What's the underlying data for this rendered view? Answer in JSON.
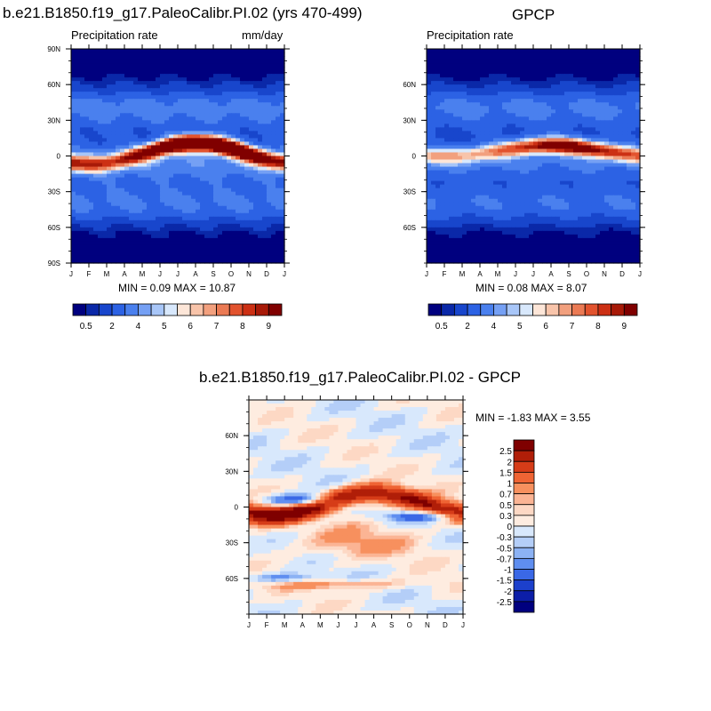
{
  "chart_data": [
    {
      "type": "heatmap",
      "title": "b.e21.B1850.f19_g17.PaleoCalibr.PI.02 (yrs 470-499)",
      "left_string": "Precipitation rate",
      "right_string": "mm/day",
      "x": "month",
      "y": "latitude",
      "xticks": [
        "J",
        "F",
        "M",
        "A",
        "M",
        "J",
        "J",
        "A",
        "S",
        "O",
        "N",
        "D",
        "J"
      ],
      "yticks": [
        {
          "lat": 90,
          "label": "90N"
        },
        {
          "lat": 60,
          "label": "60N"
        },
        {
          "lat": 30,
          "label": "30N"
        },
        {
          "lat": 0,
          "label": "0"
        },
        {
          "lat": -30,
          "label": "30S"
        },
        {
          "lat": -60,
          "label": "60S"
        },
        {
          "lat": -90,
          "label": "90S"
        }
      ],
      "ylim": [
        -90,
        90
      ],
      "stats": "MIN =   0.09 MAX =  10.87",
      "min": 0.09,
      "max": 10.87,
      "itcz_max_mm_day": 10.87,
      "colorbar_ticks": [
        "0.5",
        "2",
        "4",
        "5",
        "6",
        "7",
        "8",
        "9"
      ]
    },
    {
      "type": "heatmap",
      "title": "GPCP",
      "left_string": "Precipitation rate",
      "right_string": "",
      "x": "month",
      "y": "latitude",
      "xticks": [
        "J",
        "F",
        "M",
        "A",
        "M",
        "J",
        "J",
        "A",
        "S",
        "O",
        "N",
        "D",
        "J"
      ],
      "yticks": [
        {
          "lat": 60,
          "label": "60N"
        },
        {
          "lat": 30,
          "label": "30N"
        },
        {
          "lat": 0,
          "label": "0"
        },
        {
          "lat": -30,
          "label": "30S"
        },
        {
          "lat": -60,
          "label": "60S"
        }
      ],
      "ylim": [
        -90,
        90
      ],
      "stats": "MIN =   0.08 MAX =   8.07",
      "min": 0.08,
      "max": 8.07,
      "colorbar_ticks": [
        "0.5",
        "2",
        "4",
        "5",
        "6",
        "7",
        "8",
        "9"
      ]
    },
    {
      "type": "heatmap",
      "title": "b.e21.B1850.f19_g17.PaleoCalibr.PI.02 - GPCP",
      "x": "month",
      "y": "latitude",
      "xticks": [
        "J",
        "F",
        "M",
        "A",
        "M",
        "J",
        "J",
        "A",
        "S",
        "O",
        "N",
        "D",
        "J"
      ],
      "yticks": [
        {
          "lat": 60,
          "label": "60N"
        },
        {
          "lat": 30,
          "label": "30N"
        },
        {
          "lat": 0,
          "label": "0"
        },
        {
          "lat": -30,
          "label": "30S"
        },
        {
          "lat": -60,
          "label": "60S"
        }
      ],
      "ylim": [
        -90,
        90
      ],
      "stats": "MIN =  -1.83 MAX =   3.55",
      "min": -1.83,
      "max": 3.55,
      "colorbar_labels": [
        "2.5",
        "2",
        "1.5",
        "1",
        "0.7",
        "0.5",
        "0.3",
        "0",
        "-0.3",
        "-0.5",
        "-0.7",
        "-1",
        "-1.5",
        "-2",
        "-2.5"
      ]
    }
  ],
  "palettes": {
    "precip": [
      "#00007f",
      "#0a28a8",
      "#1846cc",
      "#2c62e4",
      "#4a80ee",
      "#75a0f4",
      "#a8c6f8",
      "#d8e8fc",
      "#fde6d8",
      "#f8c4aa",
      "#f2a07e",
      "#eb7a54",
      "#e2532e",
      "#cc3014",
      "#a81a08",
      "#800000"
    ],
    "diff": [
      "#7f0000",
      "#b01e08",
      "#d63c18",
      "#ef6434",
      "#f7905e",
      "#fbb494",
      "#fdd8c4",
      "#feece0",
      "#d8e8fc",
      "#b4cef8",
      "#8cb2f4",
      "#5f8ef0",
      "#3a68e6",
      "#1c40cc",
      "#0c1ea8",
      "#00007f"
    ]
  }
}
